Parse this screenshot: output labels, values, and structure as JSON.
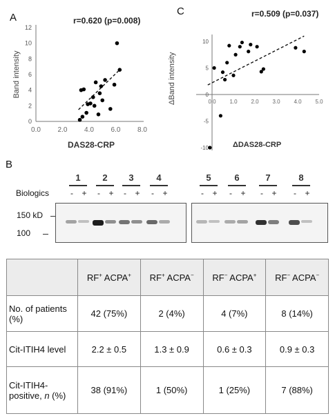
{
  "panels": {
    "A": {
      "letter": "A",
      "stat": "r=0.620 (p=0.008)",
      "chart_data": {
        "type": "scatter",
        "title": "",
        "xlabel": "DAS28-CRP",
        "ylabel": "Band intensity",
        "xlim": [
          0.0,
          8.0
        ],
        "ylim": [
          0,
          12
        ],
        "x_ticks": [
          "0.0",
          "2.0",
          "4.0",
          "6.0",
          "8.0"
        ],
        "y_ticks": [
          "0",
          "2",
          "4",
          "6",
          "8",
          "10",
          "12"
        ],
        "points": [
          {
            "x": 3.3,
            "y": 0.2
          },
          {
            "x": 3.4,
            "y": 4.0
          },
          {
            "x": 3.5,
            "y": 0.6
          },
          {
            "x": 3.6,
            "y": 4.1
          },
          {
            "x": 3.8,
            "y": 1.1
          },
          {
            "x": 3.9,
            "y": 2.2
          },
          {
            "x": 4.1,
            "y": 2.3
          },
          {
            "x": 4.3,
            "y": 3.1
          },
          {
            "x": 4.4,
            "y": 2.0
          },
          {
            "x": 4.5,
            "y": 5.0
          },
          {
            "x": 4.7,
            "y": 0.9
          },
          {
            "x": 4.8,
            "y": 3.6
          },
          {
            "x": 4.9,
            "y": 4.5
          },
          {
            "x": 5.0,
            "y": 2.7
          },
          {
            "x": 5.2,
            "y": 5.3
          },
          {
            "x": 5.6,
            "y": 1.6
          },
          {
            "x": 5.9,
            "y": 4.7
          },
          {
            "x": 6.1,
            "y": 10.0
          },
          {
            "x": 6.3,
            "y": 6.6
          }
        ],
        "trendline": {
          "x": [
            3.2,
            6.3
          ],
          "y": [
            1.5,
            6.6
          ],
          "style": "dashed"
        },
        "grid": false
      }
    },
    "C": {
      "letter": "C",
      "stat": "r=0.509 (p=0.037)",
      "chart_data": {
        "type": "scatter",
        "title": "",
        "xlabel": "ΔDAS28-CRP",
        "ylabel": "ΔBand intensity",
        "xlim": [
          -1.0,
          5.0
        ],
        "ylim": [
          -10,
          10
        ],
        "x_ticks": [
          "0.0",
          "1.0",
          "2.0",
          "3.0",
          "4.0",
          "5.0"
        ],
        "y_ticks": [
          "-10",
          "-5",
          "0",
          "5",
          "10"
        ],
        "points": [
          {
            "x": -0.1,
            "y": -10.0
          },
          {
            "x": 0.1,
            "y": 5.0
          },
          {
            "x": 0.4,
            "y": -4.0
          },
          {
            "x": 0.5,
            "y": 4.2
          },
          {
            "x": 0.6,
            "y": 2.8
          },
          {
            "x": 0.7,
            "y": 6.0
          },
          {
            "x": 0.8,
            "y": 9.2
          },
          {
            "x": 1.0,
            "y": 3.6
          },
          {
            "x": 1.1,
            "y": 7.5
          },
          {
            "x": 1.3,
            "y": 9.0
          },
          {
            "x": 1.4,
            "y": 9.8
          },
          {
            "x": 1.7,
            "y": 8.1
          },
          {
            "x": 1.8,
            "y": 9.4
          },
          {
            "x": 2.1,
            "y": 9.0
          },
          {
            "x": 2.3,
            "y": 4.3
          },
          {
            "x": 2.4,
            "y": 4.8
          },
          {
            "x": 3.9,
            "y": 8.8
          },
          {
            "x": 4.3,
            "y": 8.1
          }
        ],
        "trendline": {
          "x": [
            -0.2,
            4.3
          ],
          "y": [
            1.8,
            11.0
          ],
          "style": "dashed"
        },
        "grid": false
      }
    },
    "B": {
      "letter": "B",
      "lanes": [
        "1",
        "2",
        "3",
        "4",
        "5",
        "6",
        "7",
        "8"
      ],
      "row_label": "Biologics",
      "minus": "-",
      "plus": "+",
      "marker_150": "150 kD",
      "marker_100": "100"
    }
  },
  "table": {
    "headers": [
      {
        "rf": "RF",
        "rf_sign": "+",
        "acpa": " ACPA",
        "acpa_sign": "+"
      },
      {
        "rf": "RF",
        "rf_sign": "+",
        "acpa": " ACPA",
        "acpa_sign": "−"
      },
      {
        "rf": "RF",
        "rf_sign": "−",
        "acpa": " ACPA",
        "acpa_sign": "+"
      },
      {
        "rf": "RF",
        "rf_sign": "−",
        "acpa": " ACPA",
        "acpa_sign": "−"
      }
    ],
    "rows": [
      {
        "label": "No. of patients (%)",
        "cells": [
          "42 (75%)",
          "2 (4%)",
          "4 (7%)",
          "8 (14%)"
        ]
      },
      {
        "label": "Cit-ITIH4 level",
        "cells": [
          "2.2 ± 0.5",
          "1.3 ± 0.9",
          "0.6 ± 0.3",
          "0.9 ± 0.3"
        ]
      },
      {
        "label_main": "Cit-ITIH4-positive, ",
        "label_n": "n",
        "label_tail": " (%)",
        "cells": [
          "38 (91%)",
          "1 (50%)",
          "1 (25%)",
          "7 (88%)"
        ]
      }
    ]
  }
}
